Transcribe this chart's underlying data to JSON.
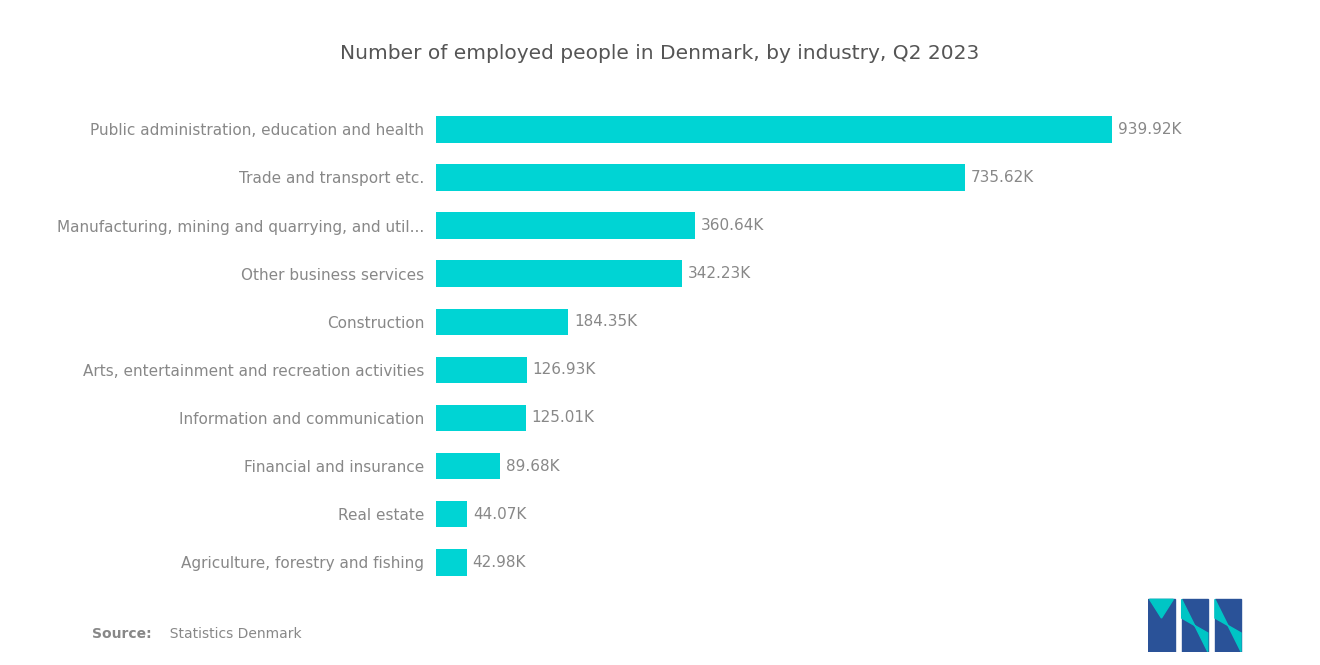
{
  "title": "Number of employed people in Denmark, by industry, Q2 2023",
  "categories": [
    "Agriculture, forestry and fishing",
    "Real estate",
    "Financial and insurance",
    "Information and communication",
    "Arts, entertainment and recreation activities",
    "Construction",
    "Other business services",
    "Manufacturing, mining and quarrying, and util...",
    "Trade and transport etc.",
    "Public administration, education and health"
  ],
  "values": [
    42.98,
    44.07,
    89.68,
    125.01,
    126.93,
    184.35,
    342.23,
    360.64,
    735.62,
    939.92
  ],
  "labels": [
    "42.98K",
    "44.07K",
    "89.68K",
    "125.01K",
    "126.93K",
    "184.35K",
    "342.23K",
    "360.64K",
    "735.62K",
    "939.92K"
  ],
  "bar_color": "#00D4D4",
  "background_color": "#ffffff",
  "title_fontsize": 14.5,
  "label_fontsize": 11,
  "tick_fontsize": 11,
  "source_bold": "Source:",
  "source_rest": "  Statistics Denmark",
  "text_color": "#888888",
  "title_color": "#555555",
  "logo_dark": "#2a5298",
  "logo_teal": "#00C5C5"
}
